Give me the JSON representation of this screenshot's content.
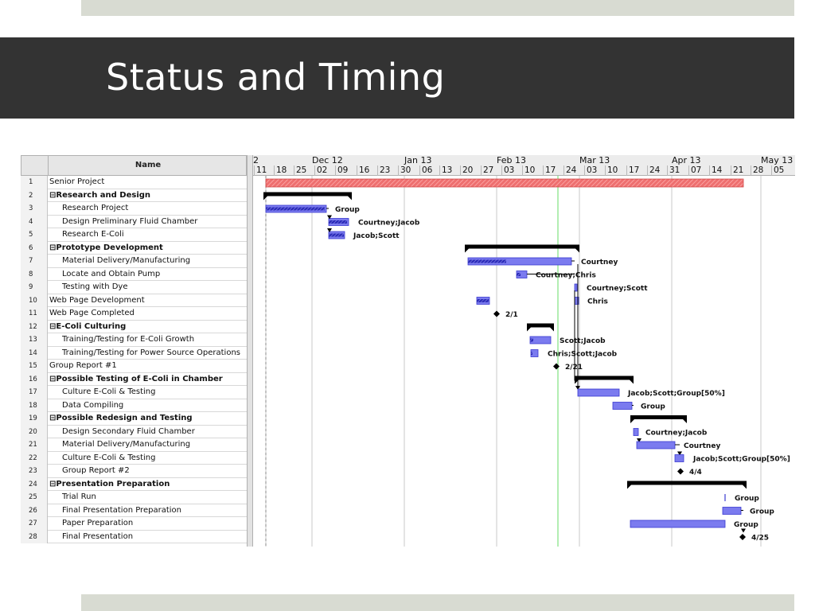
{
  "slide": {
    "title": "Status and Timing"
  },
  "gantt": {
    "name_header": "Name",
    "timeline": {
      "months": [
        "2",
        "Dec 12",
        "Jan 13",
        "Feb 13",
        "Mar 13",
        "Apr 13",
        "May 13"
      ],
      "days": [
        "11",
        "18",
        "25",
        "02",
        "09",
        "16",
        "23",
        "30",
        "06",
        "13",
        "20",
        "27",
        "03",
        "10",
        "17",
        "24",
        "03",
        "10",
        "17",
        "24",
        "31",
        "07",
        "14",
        "21",
        "28",
        "05"
      ]
    },
    "tasks": [
      {
        "num": "1",
        "name": "Senior Project",
        "summary": false,
        "indent": false
      },
      {
        "num": "2",
        "name": "⊟Research and Design",
        "summary": true,
        "indent": false
      },
      {
        "num": "3",
        "name": "Research Project",
        "summary": false,
        "indent": true
      },
      {
        "num": "4",
        "name": "Design Preliminary Fluid Chamber",
        "summary": false,
        "indent": true
      },
      {
        "num": "5",
        "name": "Research E-Coli",
        "summary": false,
        "indent": true
      },
      {
        "num": "6",
        "name": "⊟Prototype Development",
        "summary": true,
        "indent": false
      },
      {
        "num": "7",
        "name": "Material Delivery/Manufacturing",
        "summary": false,
        "indent": true
      },
      {
        "num": "8",
        "name": "Locate and Obtain Pump",
        "summary": false,
        "indent": true
      },
      {
        "num": "9",
        "name": "Testing with Dye",
        "summary": false,
        "indent": true
      },
      {
        "num": "10",
        "name": "Web Page Development",
        "summary": false,
        "indent": false
      },
      {
        "num": "11",
        "name": "Web Page Completed",
        "summary": false,
        "indent": false
      },
      {
        "num": "12",
        "name": "⊟E-Coli Culturing",
        "summary": true,
        "indent": false
      },
      {
        "num": "13",
        "name": "Training/Testing for E-Coli Growth",
        "summary": false,
        "indent": true
      },
      {
        "num": "14",
        "name": "Training/Testing for Power Source Operations",
        "summary": false,
        "indent": true
      },
      {
        "num": "15",
        "name": "Group Report #1",
        "summary": false,
        "indent": false
      },
      {
        "num": "16",
        "name": "⊟Possible Testing of E-Coli in Chamber",
        "summary": true,
        "indent": false
      },
      {
        "num": "17",
        "name": "Culture E-Coli & Testing",
        "summary": false,
        "indent": true
      },
      {
        "num": "18",
        "name": "Data Compiling",
        "summary": false,
        "indent": true
      },
      {
        "num": "19",
        "name": "⊟Possible Redesign and Testing",
        "summary": true,
        "indent": false
      },
      {
        "num": "20",
        "name": "Design Secondary Fluid Chamber",
        "summary": false,
        "indent": true
      },
      {
        "num": "21",
        "name": "Material Delivery/Manufacturing",
        "summary": false,
        "indent": true
      },
      {
        "num": "22",
        "name": "Culture E-Coli & Testing",
        "summary": false,
        "indent": true
      },
      {
        "num": "23",
        "name": "Group Report #2",
        "summary": false,
        "indent": true
      },
      {
        "num": "24",
        "name": "⊟Presentation Preparation",
        "summary": true,
        "indent": false
      },
      {
        "num": "25",
        "name": "Trial Run",
        "summary": false,
        "indent": true
      },
      {
        "num": "26",
        "name": "Final Presentation Preparation",
        "summary": false,
        "indent": true
      },
      {
        "num": "27",
        "name": "Paper Preparation",
        "summary": false,
        "indent": true
      },
      {
        "num": "28",
        "name": "Final Presentation",
        "summary": false,
        "indent": true
      }
    ],
    "bar_labels": [
      "Group",
      "Courtney;Jacob",
      "Jacob;Scott",
      "Courtney",
      "Courtney;Chris",
      "Courtney;Scott",
      "Chris",
      "2/1",
      "Scott;Jacob",
      "Chris;Scott;Jacob",
      "2/21",
      "Jacob;Scott;Group[50%]",
      "Group",
      "Courtney;Jacob",
      "Courtney",
      "Jacob;Scott;Group[50%]",
      "4/4",
      "Group",
      "Group",
      "Group",
      "4/25"
    ],
    "colors": {
      "task_bar": "#7b7bef",
      "project_bar": "#ee6f6f",
      "summary_bar": "#000000",
      "today_line": "#66dd66"
    }
  }
}
